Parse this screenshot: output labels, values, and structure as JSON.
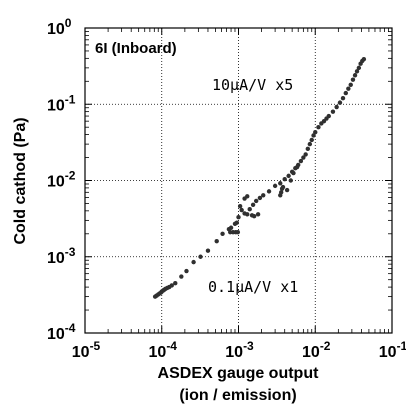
{
  "chart_data": {
    "type": "scatter",
    "title": "",
    "panel_label": "6I (Inboard)",
    "xlabel": "ASDEX gauge output",
    "xlabel_line2": "(ion / emission)",
    "ylabel": "Cold cathod (Pa)",
    "x_scale": "log",
    "y_scale": "log",
    "xlim": [
      1e-05,
      0.1
    ],
    "ylim": [
      0.0001,
      1
    ],
    "grid": true,
    "grid_style": "dotted",
    "x_ticks": [
      {
        "value": 1e-05,
        "base": "10",
        "exp": "-5"
      },
      {
        "value": 0.0001,
        "base": "10",
        "exp": "-4"
      },
      {
        "value": 0.001,
        "base": "10",
        "exp": "-3"
      },
      {
        "value": 0.01,
        "base": "10",
        "exp": "-2"
      },
      {
        "value": 0.1,
        "base": "10",
        "exp": "-1"
      }
    ],
    "y_ticks": [
      {
        "value": 0.0001,
        "base": "10",
        "exp": "-4"
      },
      {
        "value": 0.001,
        "base": "10",
        "exp": "-3"
      },
      {
        "value": 0.01,
        "base": "10",
        "exp": "-2"
      },
      {
        "value": 0.1,
        "base": "10",
        "exp": "-1"
      },
      {
        "value": 1,
        "base": "10",
        "exp": "0"
      }
    ],
    "annotations": [
      {
        "text": "10μA/V x5",
        "x": 0.0032,
        "y": 0.12
      },
      {
        "text": "0.1μA/V x1",
        "x": 0.0012,
        "y": 0.00045
      }
    ],
    "marker_color": "#303030",
    "series": [
      {
        "points": [
          [
            8.2e-05,
            0.0003
          ],
          [
            8.6e-05,
            0.00031
          ],
          [
            9e-05,
            0.00032
          ],
          [
            9.4e-05,
            0.00033
          ],
          [
            9.8e-05,
            0.00034
          ],
          [
            0.0001,
            0.00035
          ],
          [
            0.000104,
            0.00036
          ],
          [
            0.000108,
            0.00037
          ],
          [
            0.000112,
            0.00038
          ],
          [
            0.000118,
            0.00039
          ],
          [
            0.000125,
            0.0004
          ],
          [
            0.000135,
            0.00042
          ],
          [
            0.00015,
            0.00045
          ],
          [
            0.00018,
            0.00055
          ],
          [
            0.00021,
            0.00065
          ],
          [
            0.00026,
            0.00085
          ],
          [
            0.00032,
            0.001
          ],
          [
            0.0004,
            0.0012
          ],
          [
            0.00052,
            0.0016
          ],
          [
            0.00062,
            0.002
          ],
          [
            0.00075,
            0.0023
          ],
          [
            0.0008,
            0.0024
          ],
          [
            0.0009,
            0.0027
          ],
          [
            0.00095,
            0.0028
          ],
          [
            0.001,
            0.0033
          ],
          [
            0.0012,
            0.0037
          ],
          [
            0.0014,
            0.0042
          ],
          [
            0.00155,
            0.0048
          ],
          [
            0.0017,
            0.0054
          ],
          [
            0.0019,
            0.0059
          ],
          [
            0.0021,
            0.0064
          ],
          [
            0.0025,
            0.0072
          ],
          [
            0.003,
            0.0085
          ],
          [
            0.0035,
            0.0092
          ],
          [
            0.004,
            0.0104
          ],
          [
            0.0045,
            0.0115
          ],
          [
            0.005,
            0.013
          ],
          [
            0.0055,
            0.0145
          ],
          [
            0.006,
            0.016
          ],
          [
            0.0065,
            0.018
          ],
          [
            0.007,
            0.02
          ],
          [
            0.0075,
            0.022
          ],
          [
            0.008,
            0.026
          ],
          [
            0.0085,
            0.03
          ],
          [
            0.009,
            0.034
          ],
          [
            0.0095,
            0.039
          ],
          [
            0.01,
            0.043
          ],
          [
            0.011,
            0.05
          ],
          [
            0.012,
            0.056
          ],
          [
            0.013,
            0.06
          ],
          [
            0.014,
            0.065
          ],
          [
            0.015,
            0.07
          ],
          [
            0.017,
            0.08
          ],
          [
            0.019,
            0.092
          ],
          [
            0.021,
            0.105
          ],
          [
            0.023,
            0.12
          ],
          [
            0.025,
            0.14
          ],
          [
            0.027,
            0.16
          ],
          [
            0.029,
            0.18
          ],
          [
            0.031,
            0.21
          ],
          [
            0.033,
            0.24
          ],
          [
            0.035,
            0.27
          ],
          [
            0.037,
            0.3
          ],
          [
            0.039,
            0.34
          ],
          [
            0.041,
            0.37
          ],
          [
            0.043,
            0.39
          ],
          [
            0.00078,
            0.0021
          ],
          [
            0.00085,
            0.0021
          ],
          [
            0.00092,
            0.0021
          ],
          [
            0.00098,
            0.0021
          ],
          [
            0.0011,
            0.0041
          ],
          [
            0.0013,
            0.0036
          ],
          [
            0.0015,
            0.0035
          ],
          [
            0.0016,
            0.0034
          ],
          [
            0.0018,
            0.0036
          ],
          [
            0.00105,
            0.0046
          ],
          [
            0.0012,
            0.0058
          ],
          [
            0.0013,
            0.0062
          ],
          [
            0.0035,
            0.0064
          ],
          [
            0.0036,
            0.007
          ],
          [
            0.0037,
            0.0078
          ],
          [
            0.0038,
            0.0082
          ],
          [
            0.0043,
            0.0075
          ],
          [
            0.0048,
            0.01
          ],
          [
            0.0052,
            0.0125
          ],
          [
            0.0058,
            0.015
          ]
        ]
      }
    ]
  }
}
